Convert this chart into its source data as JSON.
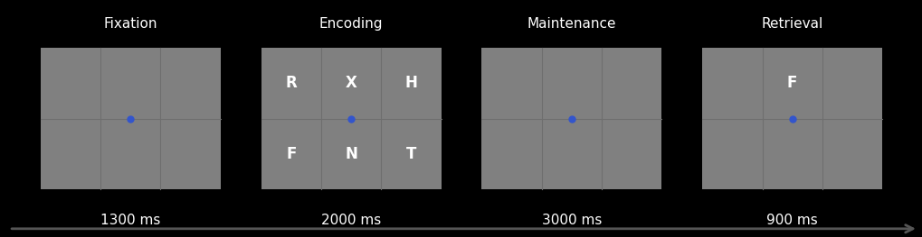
{
  "background_color": "#000000",
  "panel_color": "#808080",
  "grid_line_color": "#6e6e6e",
  "dot_color": "#3355cc",
  "letter_color": "#ffffff",
  "title_color": "#ffffff",
  "time_color": "#ffffff",
  "arrow_color": "#333333",
  "panels": [
    {
      "title": "Fixation",
      "time": "1300 ms",
      "letters": [],
      "dot": true
    },
    {
      "title": "Encoding",
      "time": "2000 ms",
      "letters": [
        "R",
        "X",
        "H",
        "F",
        "N",
        "T"
      ],
      "dot": true
    },
    {
      "title": "Maintenance",
      "time": "3000 ms",
      "letters": [],
      "dot": true
    },
    {
      "title": "Retrieval",
      "time": "900 ms",
      "letters": [
        "F"
      ],
      "dot": true
    }
  ],
  "fig_width": 10.2,
  "fig_height": 2.63,
  "dpi": 100
}
